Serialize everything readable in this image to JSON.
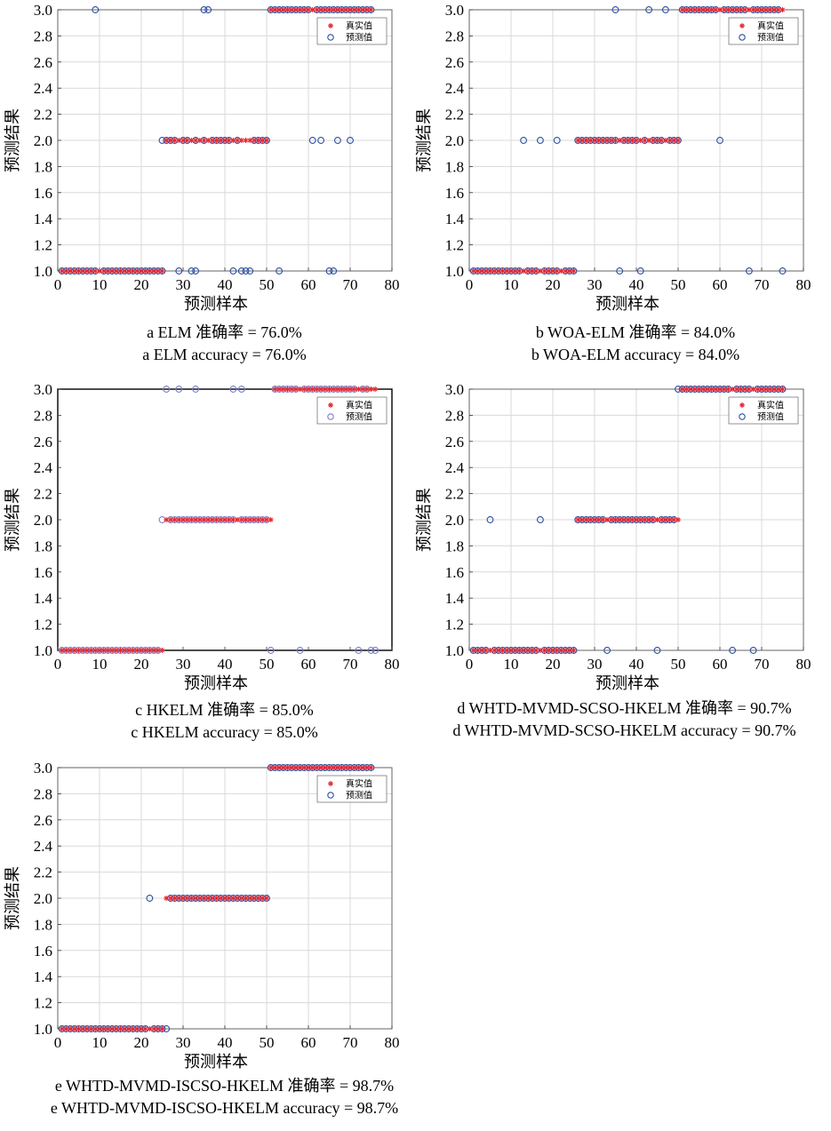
{
  "colors": {
    "true_marker": "#e8262e",
    "pred_marker": "#2b4fa0",
    "pred_marker_light": "#7a7fc8",
    "grid": "#d9d9d9"
  },
  "chart_data": [
    {
      "id": "a",
      "type": "scatter",
      "xlabel": "预测样本",
      "ylabel": "预测结果",
      "xlim": [
        0,
        80
      ],
      "ylim": [
        1.0,
        3.0
      ],
      "xticks": [
        "0",
        "10",
        "20",
        "30",
        "40",
        "50",
        "60",
        "70",
        "80"
      ],
      "yticks": [
        "1.0",
        "1.2",
        "1.4",
        "1.6",
        "1.8",
        "2.0",
        "2.2",
        "2.4",
        "2.6",
        "2.8",
        "3.0"
      ],
      "legend": [
        "真实值",
        "预测值"
      ],
      "legend_position": "top-right",
      "grid": true,
      "caption_cn": "a  ELM 准确率 = 76.0%",
      "caption_en": "a  ELM accuracy = 76.0%",
      "true_segments": [
        [
          1,
          25,
          1
        ],
        [
          26,
          50,
          2
        ],
        [
          51,
          75,
          3
        ]
      ],
      "pred_points": {
        "1": [
          1,
          2,
          3,
          4,
          5,
          6,
          7,
          8,
          9,
          11,
          12,
          13,
          14,
          15,
          16,
          17,
          18,
          19,
          20,
          21,
          22,
          23,
          24,
          25,
          29,
          32,
          33,
          42,
          44,
          45,
          46,
          53,
          65,
          66
        ],
        "2": [
          25,
          26,
          27,
          28,
          30,
          31,
          33,
          35,
          37,
          38,
          39,
          40,
          41,
          43,
          47,
          48,
          49,
          50,
          61,
          63,
          67,
          70
        ],
        "3": [
          9,
          35,
          36,
          51,
          52,
          53,
          54,
          55,
          56,
          57,
          58,
          59,
          60,
          62,
          63,
          64,
          65,
          66,
          67,
          68,
          69,
          70,
          71,
          72,
          73,
          74,
          75
        ]
      }
    },
    {
      "id": "b",
      "type": "scatter",
      "xlabel": "预测样本",
      "ylabel": "预测结果",
      "xlim": [
        0,
        80
      ],
      "ylim": [
        1.0,
        3.0
      ],
      "xticks": [
        "0",
        "10",
        "20",
        "30",
        "40",
        "50",
        "60",
        "70",
        "80"
      ],
      "yticks": [
        "1.0",
        "1.2",
        "1.4",
        "1.6",
        "1.8",
        "2.0",
        "2.2",
        "2.4",
        "2.6",
        "2.8",
        "3.0"
      ],
      "legend": [
        "真实值",
        "预测值"
      ],
      "legend_position": "top-right",
      "grid": true,
      "caption_cn": "b  WOA-ELM 准确率 = 84.0%",
      "caption_en": "b  WOA-ELM accuracy = 84.0%",
      "true_segments": [
        [
          1,
          25,
          1
        ],
        [
          26,
          50,
          2
        ],
        [
          51,
          75,
          3
        ]
      ],
      "pred_points": {
        "1": [
          1,
          2,
          3,
          4,
          5,
          6,
          7,
          8,
          9,
          10,
          11,
          12,
          14,
          15,
          16,
          18,
          19,
          20,
          21,
          23,
          24,
          25,
          36,
          41,
          67,
          75
        ],
        "2": [
          13,
          17,
          21,
          26,
          27,
          28,
          29,
          30,
          31,
          32,
          33,
          34,
          35,
          37,
          38,
          39,
          40,
          42,
          44,
          45,
          46,
          48,
          49,
          50,
          60
        ],
        "3": [
          35,
          43,
          47,
          51,
          52,
          53,
          54,
          55,
          56,
          57,
          58,
          59,
          61,
          62,
          63,
          64,
          65,
          66,
          68,
          69,
          70,
          71,
          72,
          73,
          74
        ]
      }
    },
    {
      "id": "c",
      "type": "scatter",
      "xlabel": "预测样本",
      "ylabel": "预测结果",
      "xlim": [
        0,
        80
      ],
      "ylim": [
        1.0,
        3.0
      ],
      "xticks": [
        "0",
        "10",
        "20",
        "30",
        "40",
        "50",
        "60",
        "70",
        "80"
      ],
      "yticks": [
        "1.0",
        "1.2",
        "1.4",
        "1.6",
        "1.8",
        "2.0",
        "2.2",
        "2.4",
        "2.6",
        "2.8",
        "3.0"
      ],
      "legend": [
        "真实值",
        "预测值"
      ],
      "legend_position": "top-right",
      "grid": false,
      "caption_cn": "c  HKELM 准确率 = 85.0%",
      "caption_en": "c  HKELM accuracy = 85.0%",
      "true_segments": [
        [
          1,
          25,
          1
        ],
        [
          26,
          51,
          2
        ],
        [
          52,
          76,
          3
        ]
      ],
      "pred_points": {
        "1": [
          1,
          2,
          3,
          4,
          5,
          6,
          7,
          8,
          9,
          10,
          11,
          12,
          13,
          14,
          15,
          16,
          17,
          18,
          19,
          20,
          21,
          22,
          23,
          24,
          51,
          58,
          72,
          75,
          76
        ],
        "2": [
          25,
          27,
          28,
          29,
          30,
          31,
          32,
          33,
          34,
          35,
          36,
          37,
          38,
          39,
          40,
          41,
          42,
          44,
          45,
          46,
          47,
          48,
          49,
          50
        ],
        "3": [
          26,
          29,
          33,
          42,
          44,
          52,
          53,
          54,
          55,
          56,
          57,
          59,
          60,
          61,
          62,
          63,
          64,
          65,
          66,
          67,
          68,
          69,
          70,
          71,
          73,
          74
        ]
      }
    },
    {
      "id": "d",
      "type": "scatter",
      "xlabel": "预测样本",
      "ylabel": "预测结果",
      "xlim": [
        0,
        80
      ],
      "ylim": [
        1.0,
        3.0
      ],
      "xticks": [
        "0",
        "10",
        "20",
        "30",
        "40",
        "50",
        "60",
        "70",
        "80"
      ],
      "yticks": [
        "1.0",
        "1.2",
        "1.4",
        "1.6",
        "1.8",
        "2.0",
        "2.2",
        "2.4",
        "2.6",
        "2.8",
        "3.0"
      ],
      "legend": [
        "真实值",
        "预测值"
      ],
      "legend_position": "top-right",
      "grid": true,
      "caption_cn": "d  WHTD-MVMD-SCSO-HKELM 准确率 = 90.7%",
      "caption_en": "d  WHTD-MVMD-SCSO-HKELM accuracy = 90.7%",
      "true_segments": [
        [
          1,
          25,
          1
        ],
        [
          26,
          50,
          2
        ],
        [
          51,
          75,
          3
        ]
      ],
      "pred_points": {
        "1": [
          1,
          2,
          3,
          4,
          6,
          7,
          8,
          9,
          10,
          11,
          12,
          13,
          14,
          15,
          16,
          18,
          19,
          20,
          21,
          22,
          23,
          24,
          25,
          33,
          45,
          63,
          68
        ],
        "2": [
          5,
          17,
          26,
          27,
          28,
          29,
          30,
          31,
          32,
          34,
          35,
          36,
          37,
          38,
          39,
          40,
          41,
          42,
          43,
          44,
          46,
          47,
          48,
          49
        ],
        "3": [
          50,
          51,
          52,
          53,
          54,
          55,
          56,
          57,
          58,
          59,
          60,
          61,
          62,
          64,
          65,
          66,
          67,
          69,
          70,
          71,
          72,
          73,
          74,
          75
        ]
      }
    },
    {
      "id": "e",
      "type": "scatter",
      "xlabel": "预测样本",
      "ylabel": "预测结果",
      "xlim": [
        0,
        80
      ],
      "ylim": [
        1.0,
        3.0
      ],
      "xticks": [
        "0",
        "10",
        "20",
        "30",
        "40",
        "50",
        "60",
        "70",
        "80"
      ],
      "yticks": [
        "1.0",
        "1.2",
        "1.4",
        "1.6",
        "1.8",
        "2.0",
        "2.2",
        "2.4",
        "2.6",
        "2.8",
        "3.0"
      ],
      "legend": [
        "真实值",
        "预测值"
      ],
      "legend_position": "top-right",
      "grid": true,
      "caption_cn": "e  WHTD-MVMD-ISCSO-HKELM 准确率 = 98.7%",
      "caption_en": "e  WHTD-MVMD-ISCSO-HKELM accuracy = 98.7%",
      "true_segments": [
        [
          1,
          25,
          1
        ],
        [
          26,
          50,
          2
        ],
        [
          51,
          75,
          3
        ]
      ],
      "pred_points": {
        "1": [
          1,
          2,
          3,
          4,
          5,
          6,
          7,
          8,
          9,
          10,
          11,
          12,
          13,
          14,
          15,
          16,
          17,
          18,
          19,
          20,
          21,
          23,
          24,
          25,
          26
        ],
        "2": [
          22,
          27,
          28,
          29,
          30,
          31,
          32,
          33,
          34,
          35,
          36,
          37,
          38,
          39,
          40,
          41,
          42,
          43,
          44,
          45,
          46,
          47,
          48,
          49,
          50
        ],
        "3": [
          51,
          52,
          53,
          54,
          55,
          56,
          57,
          58,
          59,
          60,
          61,
          62,
          63,
          64,
          65,
          66,
          67,
          68,
          69,
          70,
          71,
          72,
          73,
          74,
          75
        ]
      }
    }
  ]
}
